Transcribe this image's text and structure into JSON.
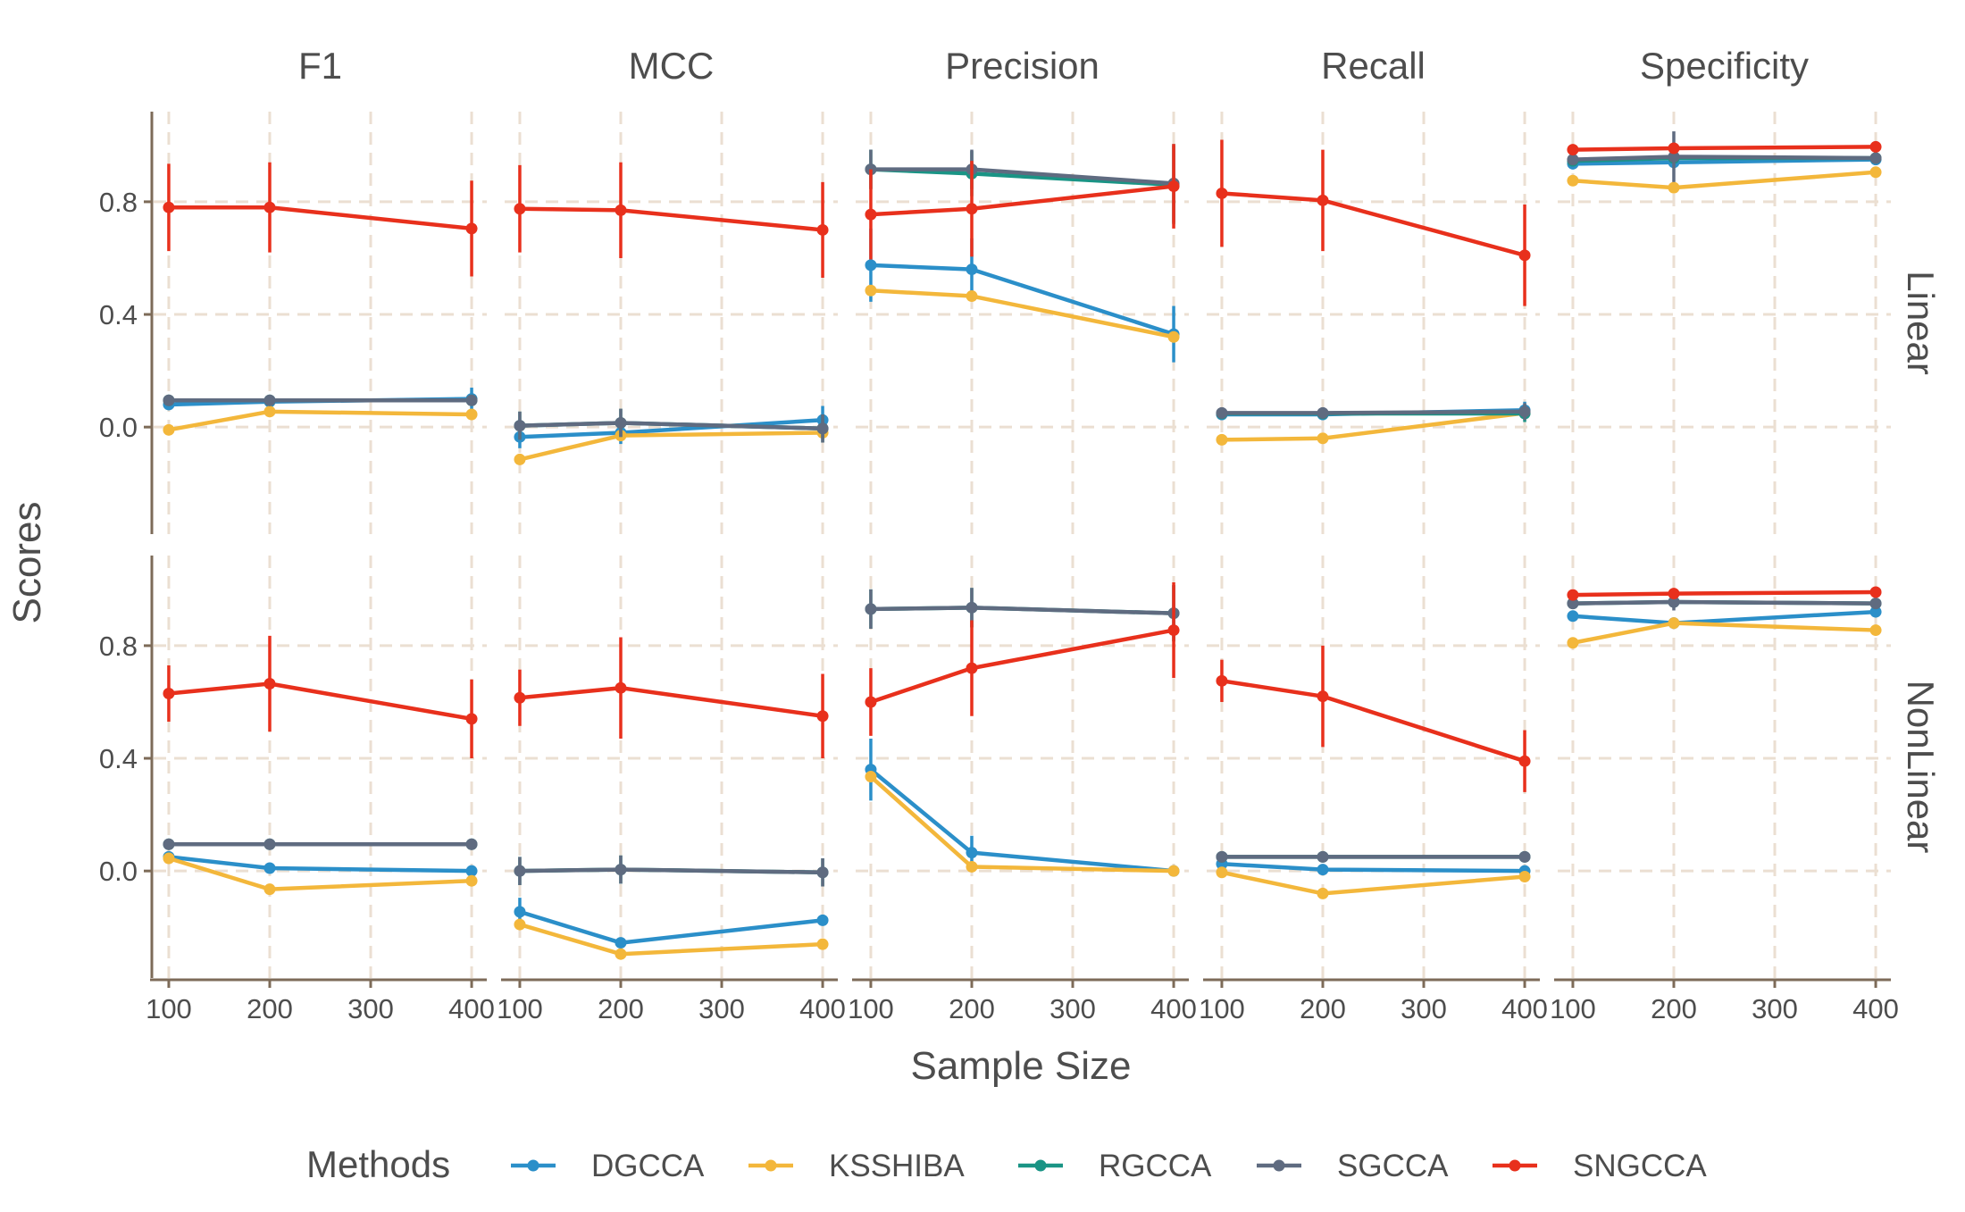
{
  "chart_data": {
    "type": "line",
    "xlabel": "Sample Size",
    "ylabel": "Scores",
    "x": [
      100,
      200,
      400
    ],
    "x_ticks": [
      100,
      200,
      300,
      400
    ],
    "x_tick_labels": [
      "100",
      "200",
      "300",
      "400"
    ],
    "x_range": [
      85,
      415
    ],
    "y_range": [
      -0.38,
      1.12
    ],
    "y_ticks": [
      0.0,
      0.4,
      0.8
    ],
    "y_tick_labels": [
      "0.0",
      "0.4",
      "0.8"
    ],
    "grid": true,
    "legend_position": "bottom",
    "legend_title": "Methods",
    "columns": [
      "F1",
      "MCC",
      "Precision",
      "Recall",
      "Specificity"
    ],
    "rows": [
      "Linear",
      "NonLinear"
    ],
    "methods": [
      {
        "name": "DGCCA",
        "color": "#2b8fc9"
      },
      {
        "name": "KSSHIBA",
        "color": "#f3b73b"
      },
      {
        "name": "RGCCA",
        "color": "#1a9485"
      },
      {
        "name": "SGCCA",
        "color": "#5f6b80"
      },
      {
        "name": "SNGCCA",
        "color": "#e8301c"
      }
    ],
    "panels": [
      {
        "row": "Linear",
        "column": "F1",
        "series": [
          {
            "name": "DGCCA",
            "values": [
              0.08,
              0.09,
              0.1
            ],
            "err": [
              0.01,
              0.01,
              0.04
            ]
          },
          {
            "name": "KSSHIBA",
            "values": [
              -0.01,
              0.055,
              0.045
            ],
            "err": [
              0,
              0,
              0
            ]
          },
          {
            "name": "RGCCA",
            "values": [
              0.095,
              0.095,
              0.095
            ],
            "err": [
              0.01,
              0.01,
              0.01
            ]
          },
          {
            "name": "SGCCA",
            "values": [
              0.095,
              0.095,
              0.095
            ],
            "err": [
              0.01,
              0.01,
              0.01
            ]
          },
          {
            "name": "SNGCCA",
            "values": [
              0.78,
              0.78,
              0.705
            ],
            "err": [
              0.155,
              0.16,
              0.17
            ]
          }
        ]
      },
      {
        "row": "Linear",
        "column": "MCC",
        "series": [
          {
            "name": "DGCCA",
            "values": [
              -0.035,
              -0.02,
              0.025
            ],
            "err": [
              0.04,
              0.04,
              0.05
            ]
          },
          {
            "name": "KSSHIBA",
            "values": [
              -0.115,
              -0.03,
              -0.02
            ],
            "err": [
              0,
              0,
              0
            ]
          },
          {
            "name": "RGCCA",
            "values": [
              0.005,
              0.015,
              -0.005
            ],
            "err": [
              0.05,
              0.05,
              0.05
            ]
          },
          {
            "name": "SGCCA",
            "values": [
              0.005,
              0.015,
              -0.005
            ],
            "err": [
              0.05,
              0.05,
              0.05
            ]
          },
          {
            "name": "SNGCCA",
            "values": [
              0.775,
              0.77,
              0.7
            ],
            "err": [
              0.155,
              0.17,
              0.17
            ]
          }
        ]
      },
      {
        "row": "Linear",
        "column": "Precision",
        "series": [
          {
            "name": "DGCCA",
            "values": [
              0.575,
              0.56,
              0.33
            ],
            "err": [
              0.13,
              0.11,
              0.1
            ]
          },
          {
            "name": "KSSHIBA",
            "values": [
              0.485,
              0.465,
              0.32
            ],
            "err": [
              0,
              0,
              0
            ]
          },
          {
            "name": "RGCCA",
            "values": [
              0.915,
              0.9,
              0.86
            ],
            "err": [
              0.07,
              0.08,
              0.14
            ]
          },
          {
            "name": "SGCCA",
            "values": [
              0.915,
              0.915,
              0.865
            ],
            "err": [
              0.07,
              0.07,
              0.14
            ]
          },
          {
            "name": "SNGCCA",
            "values": [
              0.755,
              0.775,
              0.855
            ],
            "err": [
              0.16,
              0.17,
              0.15
            ]
          }
        ]
      },
      {
        "row": "Linear",
        "column": "Recall",
        "series": [
          {
            "name": "DGCCA",
            "values": [
              0.045,
              0.045,
              0.06
            ],
            "err": [
              0.02,
              0.02,
              0.03
            ]
          },
          {
            "name": "KSSHIBA",
            "values": [
              -0.045,
              -0.04,
              0.05
            ],
            "err": [
              0,
              0,
              0
            ]
          },
          {
            "name": "RGCCA",
            "values": [
              0.048,
              0.048,
              0.048
            ],
            "err": [
              0.02,
              0.02,
              0.03
            ]
          },
          {
            "name": "SGCCA",
            "values": [
              0.05,
              0.05,
              0.055
            ],
            "err": [
              0.02,
              0.02,
              0.03
            ]
          },
          {
            "name": "SNGCCA",
            "values": [
              0.83,
              0.805,
              0.61
            ],
            "err": [
              0.19,
              0.18,
              0.18
            ]
          }
        ]
      },
      {
        "row": "Linear",
        "column": "Specificity",
        "series": [
          {
            "name": "DGCCA",
            "values": [
              0.935,
              0.94,
              0.95
            ],
            "err": [
              0.02,
              0.02,
              0.02
            ]
          },
          {
            "name": "KSSHIBA",
            "values": [
              0.875,
              0.85,
              0.905
            ],
            "err": [
              0,
              0,
              0
            ]
          },
          {
            "name": "RGCCA",
            "values": [
              0.945,
              0.955,
              0.955
            ],
            "err": [
              0.02,
              0.02,
              0.02
            ]
          },
          {
            "name": "SGCCA",
            "values": [
              0.95,
              0.96,
              0.955
            ],
            "err": [
              0.02,
              0.09,
              0.02
            ]
          },
          {
            "name": "SNGCCA",
            "values": [
              0.985,
              0.99,
              0.995
            ],
            "err": [
              0.01,
              0.01,
              0.01
            ]
          }
        ]
      },
      {
        "row": "NonLinear",
        "column": "F1",
        "series": [
          {
            "name": "DGCCA",
            "values": [
              0.05,
              0.01,
              0.0
            ],
            "err": [
              0,
              0,
              0
            ]
          },
          {
            "name": "KSSHIBA",
            "values": [
              0.045,
              -0.065,
              -0.035
            ],
            "err": [
              0,
              0,
              0
            ]
          },
          {
            "name": "RGCCA",
            "values": [
              0.095,
              0.095,
              0.095
            ],
            "err": [
              0.01,
              0.01,
              0.01
            ]
          },
          {
            "name": "SGCCA",
            "values": [
              0.095,
              0.095,
              0.095
            ],
            "err": [
              0.01,
              0.01,
              0.01
            ]
          },
          {
            "name": "SNGCCA",
            "values": [
              0.63,
              0.665,
              0.54
            ],
            "err": [
              0.1,
              0.17,
              0.14
            ]
          }
        ]
      },
      {
        "row": "NonLinear",
        "column": "MCC",
        "series": [
          {
            "name": "DGCCA",
            "values": [
              -0.145,
              -0.255,
              -0.175
            ],
            "err": [
              0.05,
              0,
              0
            ]
          },
          {
            "name": "KSSHIBA",
            "values": [
              -0.19,
              -0.295,
              -0.26
            ],
            "err": [
              0,
              0,
              0
            ]
          },
          {
            "name": "RGCCA",
            "values": [
              0.0,
              0.005,
              -0.005
            ],
            "err": [
              0.05,
              0.05,
              0.05
            ]
          },
          {
            "name": "SGCCA",
            "values": [
              0.0,
              0.005,
              -0.005
            ],
            "err": [
              0.05,
              0.05,
              0.05
            ]
          },
          {
            "name": "SNGCCA",
            "values": [
              0.615,
              0.65,
              0.55
            ],
            "err": [
              0.1,
              0.18,
              0.15
            ]
          }
        ]
      },
      {
        "row": "NonLinear",
        "column": "Precision",
        "series": [
          {
            "name": "DGCCA",
            "values": [
              0.36,
              0.065,
              0.0
            ],
            "err": [
              0.11,
              0.06,
              0
            ]
          },
          {
            "name": "KSSHIBA",
            "values": [
              0.335,
              0.015,
              0.0
            ],
            "err": [
              0,
              0,
              0
            ]
          },
          {
            "name": "RGCCA",
            "values": [
              0.93,
              0.935,
              0.915
            ],
            "err": [
              0.07,
              0.07,
              0.1
            ]
          },
          {
            "name": "SGCCA",
            "values": [
              0.93,
              0.935,
              0.915
            ],
            "err": [
              0.07,
              0.07,
              0.1
            ]
          },
          {
            "name": "SNGCCA",
            "values": [
              0.6,
              0.72,
              0.855
            ],
            "err": [
              0.12,
              0.17,
              0.17
            ]
          }
        ]
      },
      {
        "row": "NonLinear",
        "column": "Recall",
        "series": [
          {
            "name": "DGCCA",
            "values": [
              0.025,
              0.005,
              0.0
            ],
            "err": [
              0,
              0,
              0
            ]
          },
          {
            "name": "KSSHIBA",
            "values": [
              -0.005,
              -0.08,
              -0.02
            ],
            "err": [
              0,
              0,
              0
            ]
          },
          {
            "name": "RGCCA",
            "values": [
              0.05,
              0.05,
              0.05
            ],
            "err": [
              0.01,
              0.01,
              0.01
            ]
          },
          {
            "name": "SGCCA",
            "values": [
              0.05,
              0.05,
              0.05
            ],
            "err": [
              0.01,
              0.01,
              0.01
            ]
          },
          {
            "name": "SNGCCA",
            "values": [
              0.675,
              0.62,
              0.39
            ],
            "err": [
              0.075,
              0.18,
              0.11
            ]
          }
        ]
      },
      {
        "row": "NonLinear",
        "column": "Specificity",
        "series": [
          {
            "name": "DGCCA",
            "values": [
              0.905,
              0.88,
              0.92
            ],
            "err": [
              0,
              0,
              0
            ]
          },
          {
            "name": "KSSHIBA",
            "values": [
              0.81,
              0.88,
              0.855
            ],
            "err": [
              0,
              0,
              0
            ]
          },
          {
            "name": "RGCCA",
            "values": [
              0.95,
              0.955,
              0.95
            ],
            "err": [
              0.02,
              0.02,
              0.02
            ]
          },
          {
            "name": "SGCCA",
            "values": [
              0.95,
              0.955,
              0.95
            ],
            "err": [
              0.02,
              0.03,
              0.02
            ]
          },
          {
            "name": "SNGCCA",
            "values": [
              0.98,
              0.985,
              0.99
            ],
            "err": [
              0.01,
              0.01,
              0.01
            ]
          }
        ]
      }
    ]
  }
}
